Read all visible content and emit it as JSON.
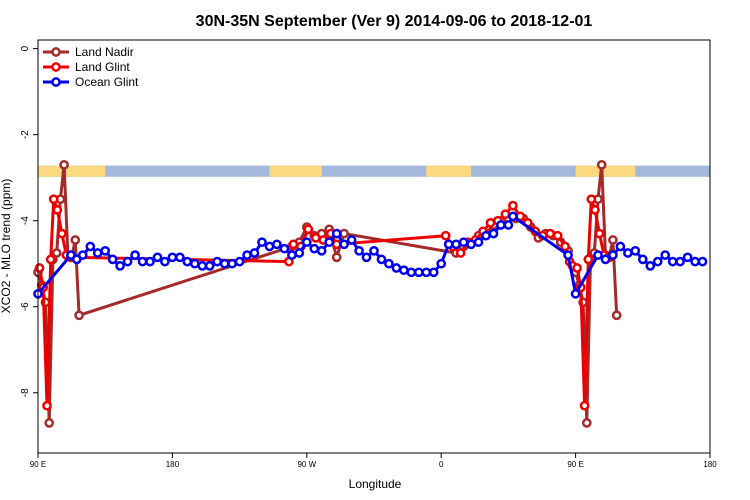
{
  "chart_data": {
    "type": "line",
    "title": "30N-35N September (Ver 9)   2014-09-06 to 2018-12-01",
    "xlabel": "Longitude",
    "ylabel": "XCO2 - MLO trend (ppm)",
    "xlim": [
      90,
      540
    ],
    "ylim": [
      -9.4,
      0.2
    ],
    "x_ticks": [
      {
        "value": 90,
        "label": "90 E"
      },
      {
        "value": 180,
        "label": "180"
      },
      {
        "value": 270,
        "label": "90 W"
      },
      {
        "value": 360,
        "label": "0"
      },
      {
        "value": 450,
        "label": "90 E"
      },
      {
        "value": 540,
        "label": "180"
      }
    ],
    "y_ticks": [
      {
        "value": 0,
        "label": "0"
      },
      {
        "value": -2,
        "label": "-2"
      },
      {
        "value": -4,
        "label": "-4"
      },
      {
        "value": -6,
        "label": "-6"
      },
      {
        "value": -8,
        "label": "-8"
      }
    ],
    "legend_position": "top-left",
    "land_mask": {
      "y_top": -2.72,
      "y_bottom": -2.98,
      "land_color": "#fbd97e",
      "ocean_color": "#a3b8dc",
      "land_ranges": [
        [
          90,
          135
        ],
        [
          245,
          280
        ],
        [
          350,
          380
        ],
        [
          450,
          490
        ]
      ]
    },
    "series": [
      {
        "name": "Land Nadir",
        "color": "#a52a2a",
        "points": [
          [
            90,
            -5.2
          ],
          [
            92.5,
            -5.5
          ],
          [
            95,
            -5.9
          ],
          [
            97.5,
            -8.7
          ],
          [
            100,
            -4.9
          ],
          [
            102.5,
            -4.75
          ],
          [
            105,
            -3.5
          ],
          [
            107.5,
            -2.7
          ],
          [
            110,
            -4.8
          ],
          [
            112.5,
            -4.85
          ],
          [
            115,
            -4.45
          ],
          [
            117.5,
            -6.2
          ],
          [
            260,
            -4.6
          ],
          [
            265,
            -4.5
          ],
          [
            270,
            -4.15
          ],
          [
            275,
            -4.35
          ],
          [
            280,
            -4.3
          ],
          [
            285,
            -4.2
          ],
          [
            290,
            -4.85
          ],
          [
            295,
            -4.3
          ],
          [
            370,
            -4.75
          ],
          [
            375,
            -4.6
          ],
          [
            385,
            -4.35
          ],
          [
            390,
            -4.3
          ],
          [
            395,
            -4.1
          ],
          [
            400,
            -4.0
          ],
          [
            405,
            -3.95
          ],
          [
            410,
            -3.95
          ],
          [
            415,
            -3.95
          ],
          [
            420,
            -4.15
          ],
          [
            425,
            -4.4
          ],
          [
            430,
            -4.3
          ],
          [
            435,
            -4.35
          ],
          [
            440,
            -4.5
          ],
          [
            445,
            -4.7
          ],
          [
            450,
            -5.2
          ],
          [
            452.5,
            -5.5
          ],
          [
            455,
            -5.9
          ],
          [
            457.5,
            -8.7
          ],
          [
            460,
            -4.9
          ],
          [
            462.5,
            -4.75
          ],
          [
            465,
            -3.5
          ],
          [
            467.5,
            -2.7
          ],
          [
            470,
            -4.8
          ],
          [
            472.5,
            -4.85
          ],
          [
            475,
            -4.45
          ],
          [
            477.5,
            -6.2
          ]
        ]
      },
      {
        "name": "Land Glint",
        "color": "#ee0000",
        "points": [
          [
            91,
            -5.1
          ],
          [
            93.5,
            -5.55
          ],
          [
            96,
            -8.3
          ],
          [
            98.5,
            -4.9
          ],
          [
            100.5,
            -3.5
          ],
          [
            103,
            -3.75
          ],
          [
            106,
            -4.3
          ],
          [
            109,
            -4.8
          ],
          [
            112,
            -4.85
          ],
          [
            258,
            -4.95
          ],
          [
            261,
            -4.55
          ],
          [
            266,
            -4.6
          ],
          [
            271,
            -4.2
          ],
          [
            276,
            -4.4
          ],
          [
            281,
            -4.45
          ],
          [
            286,
            -4.3
          ],
          [
            290,
            -4.55
          ],
          [
            363,
            -4.35
          ],
          [
            368,
            -4.6
          ],
          [
            373,
            -4.75
          ],
          [
            378,
            -4.5
          ],
          [
            383,
            -4.45
          ],
          [
            388,
            -4.25
          ],
          [
            393,
            -4.05
          ],
          [
            398,
            -4.0
          ],
          [
            403,
            -3.85
          ],
          [
            408,
            -3.65
          ],
          [
            413,
            -3.9
          ],
          [
            418,
            -4.05
          ],
          [
            423,
            -4.25
          ],
          [
            428,
            -4.35
          ],
          [
            433,
            -4.3
          ],
          [
            438,
            -4.35
          ],
          [
            443,
            -4.6
          ],
          [
            446,
            -4.95
          ],
          [
            448,
            -5.05
          ],
          [
            451,
            -5.1
          ],
          [
            453.5,
            -5.55
          ],
          [
            456,
            -8.3
          ],
          [
            458.5,
            -4.9
          ],
          [
            460.5,
            -3.5
          ],
          [
            463,
            -3.75
          ],
          [
            466,
            -4.3
          ],
          [
            469,
            -4.8
          ],
          [
            472,
            -4.85
          ]
        ]
      },
      {
        "name": "Ocean Glint",
        "color": "#0000ee",
        "points": [
          [
            90,
            -5.7
          ],
          [
            112,
            -4.8
          ],
          [
            116,
            -4.9
          ],
          [
            120,
            -4.8
          ],
          [
            125,
            -4.6
          ],
          [
            130,
            -4.75
          ],
          [
            135,
            -4.7
          ],
          [
            140,
            -4.9
          ],
          [
            145,
            -5.05
          ],
          [
            150,
            -4.95
          ],
          [
            155,
            -4.8
          ],
          [
            160,
            -4.95
          ],
          [
            165,
            -4.95
          ],
          [
            170,
            -4.85
          ],
          [
            175,
            -4.95
          ],
          [
            180,
            -4.85
          ],
          [
            185,
            -4.85
          ],
          [
            190,
            -4.95
          ],
          [
            195,
            -5.0
          ],
          [
            200,
            -5.05
          ],
          [
            205,
            -5.05
          ],
          [
            210,
            -4.95
          ],
          [
            215,
            -5.0
          ],
          [
            220,
            -5.0
          ],
          [
            225,
            -4.95
          ],
          [
            230,
            -4.8
          ],
          [
            235,
            -4.75
          ],
          [
            240,
            -4.5
          ],
          [
            245,
            -4.6
          ],
          [
            250,
            -4.55
          ],
          [
            255,
            -4.65
          ],
          [
            260,
            -4.8
          ],
          [
            265,
            -4.75
          ],
          [
            270,
            -4.5
          ],
          [
            275,
            -4.65
          ],
          [
            280,
            -4.7
          ],
          [
            285,
            -4.5
          ],
          [
            290,
            -4.3
          ],
          [
            295,
            -4.55
          ],
          [
            300,
            -4.45
          ],
          [
            305,
            -4.7
          ],
          [
            310,
            -4.85
          ],
          [
            315,
            -4.7
          ],
          [
            320,
            -4.9
          ],
          [
            325,
            -5.0
          ],
          [
            330,
            -5.1
          ],
          [
            335,
            -5.15
          ],
          [
            340,
            -5.2
          ],
          [
            345,
            -5.2
          ],
          [
            350,
            -5.2
          ],
          [
            355,
            -5.2
          ],
          [
            360,
            -5.0
          ],
          [
            365,
            -4.55
          ],
          [
            370,
            -4.55
          ],
          [
            375,
            -4.5
          ],
          [
            380,
            -4.55
          ],
          [
            385,
            -4.5
          ],
          [
            390,
            -4.35
          ],
          [
            395,
            -4.3
          ],
          [
            400,
            -4.1
          ],
          [
            405,
            -4.1
          ],
          [
            408,
            -3.9
          ],
          [
            445,
            -4.8
          ],
          [
            450,
            -5.7
          ],
          [
            465,
            -4.8
          ],
          [
            470,
            -4.9
          ],
          [
            475,
            -4.8
          ],
          [
            480,
            -4.6
          ],
          [
            485,
            -4.75
          ],
          [
            490,
            -4.7
          ],
          [
            495,
            -4.9
          ],
          [
            500,
            -5.05
          ],
          [
            505,
            -4.95
          ],
          [
            510,
            -4.8
          ],
          [
            515,
            -4.95
          ],
          [
            520,
            -4.95
          ],
          [
            525,
            -4.85
          ],
          [
            530,
            -4.95
          ],
          [
            535,
            -4.95
          ]
        ]
      }
    ]
  }
}
